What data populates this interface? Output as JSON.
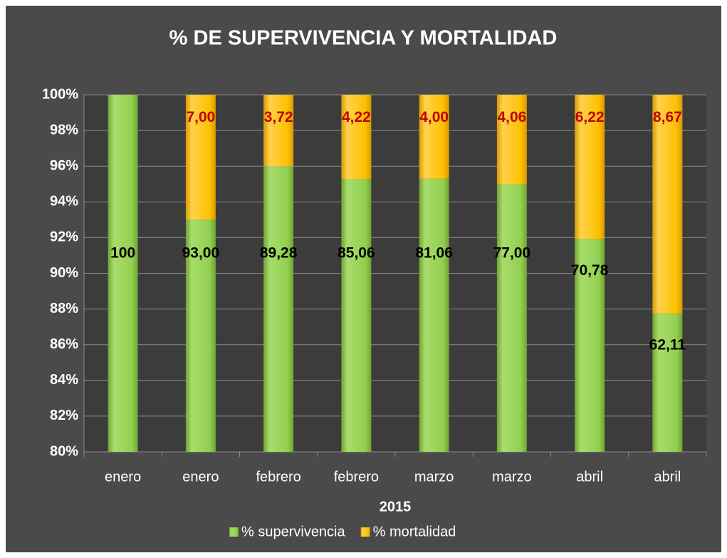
{
  "chart_data": {
    "type": "bar",
    "stacking": "percent",
    "title": "% DE SUPERVIVENCIA Y MORTALIDAD",
    "x_label": "2015",
    "categories": [
      "enero",
      "enero",
      "febrero",
      "febrero",
      "marzo",
      "marzo",
      "abril",
      "abril"
    ],
    "series": [
      {
        "name": "% supervivencia",
        "color": "#92d050",
        "values": [
          100,
          93,
          89.28,
          85.06,
          81.06,
          77,
          70.78,
          62.11
        ],
        "value_labels": [
          "100",
          "93,00",
          "89,28",
          "85,06",
          "81,06",
          "77,00",
          "70,78",
          "62,11"
        ],
        "label_color": "#000000"
      },
      {
        "name": "% mortalidad",
        "color": "#ffc000",
        "values": [
          null,
          7,
          3.72,
          4.22,
          4,
          4.06,
          6.22,
          8.67
        ],
        "value_labels": [
          null,
          "7,00",
          "3,72",
          "4,22",
          "4,00",
          "4,06",
          "6,22",
          "8,67"
        ],
        "label_color": "#c00000"
      }
    ],
    "ylim": [
      80,
      100
    ],
    "yticks": [
      {
        "value": 80,
        "label": "80%"
      },
      {
        "value": 82,
        "label": "82%"
      },
      {
        "value": 84,
        "label": "84%"
      },
      {
        "value": 86,
        "label": "86%"
      },
      {
        "value": 88,
        "label": "88%"
      },
      {
        "value": 90,
        "label": "90%"
      },
      {
        "value": 92,
        "label": "92%"
      },
      {
        "value": 94,
        "label": "94%"
      },
      {
        "value": 96,
        "label": "96%"
      },
      {
        "value": 98,
        "label": "98%"
      },
      {
        "value": 100,
        "label": "100%"
      }
    ],
    "grid": true,
    "legend": "bottom"
  }
}
